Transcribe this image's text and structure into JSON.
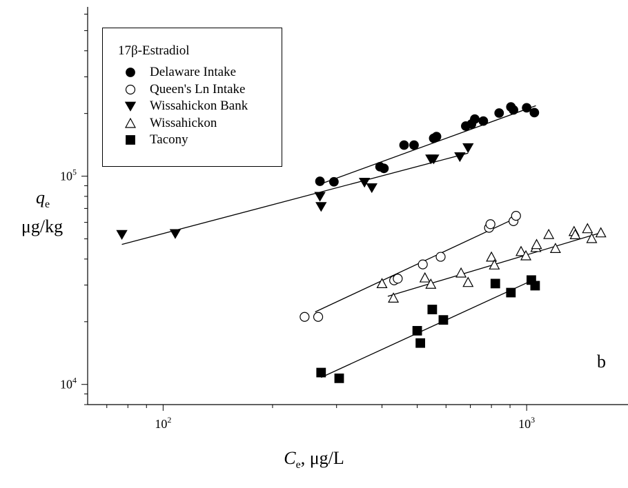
{
  "chart_data": {
    "type": "scatter",
    "panel_label": "b",
    "xlabel": {
      "symbol": "C",
      "subscript": "e",
      "unit": ", μg/L"
    },
    "ylabel": {
      "symbol": "q",
      "subscript": "e",
      "unit": "μg/kg"
    },
    "x_scale": "log",
    "y_scale": "log",
    "xlim": [
      62,
      1900
    ],
    "ylim": [
      8000,
      650000
    ],
    "x_ticks": [
      {
        "value": 100,
        "base": "10",
        "exp": "2"
      },
      {
        "value": 1000,
        "base": "10",
        "exp": "3"
      }
    ],
    "y_ticks": [
      {
        "value": 10000,
        "base": "10",
        "exp": "4"
      },
      {
        "value": 100000,
        "base": "10",
        "exp": "5"
      }
    ],
    "grid": false,
    "legend": {
      "title": "17β-Estradiol",
      "placement": "top-left"
    },
    "series": [
      {
        "name": "Delaware Intake",
        "marker": "circle-filled",
        "points": [
          [
            270,
            94500
          ],
          [
            295,
            94000
          ],
          [
            395,
            111000
          ],
          [
            405,
            109000
          ],
          [
            460,
            141000
          ],
          [
            490,
            141000
          ],
          [
            555,
            152000
          ],
          [
            565,
            155000
          ],
          [
            680,
            174000
          ],
          [
            705,
            178000
          ],
          [
            720,
            188000
          ],
          [
            760,
            184000
          ],
          [
            840,
            201000
          ],
          [
            905,
            215000
          ],
          [
            920,
            208000
          ],
          [
            1000,
            213000
          ],
          [
            1050,
            202000
          ]
        ],
        "fit": [
          [
            270,
            91500
          ],
          [
            1060,
            218000
          ]
        ]
      },
      {
        "name": "Queen's Ln Intake",
        "marker": "circle-open",
        "points": [
          [
            245,
            21100
          ],
          [
            267,
            21100
          ],
          [
            432,
            31600
          ],
          [
            442,
            32200
          ],
          [
            518,
            37700
          ],
          [
            580,
            41000
          ],
          [
            788,
            56500
          ],
          [
            795,
            58800
          ],
          [
            920,
            60800
          ],
          [
            935,
            64500
          ]
        ],
        "fit": [
          [
            262,
            22300
          ],
          [
            935,
            63000
          ]
        ]
      },
      {
        "name": "Wissahickon Bank",
        "marker": "triangle-down-filled",
        "points": [
          [
            77,
            52500
          ],
          [
            108,
            53000
          ],
          [
            270,
            80000
          ],
          [
            272,
            71500
          ],
          [
            358,
            93500
          ],
          [
            375,
            88000
          ],
          [
            545,
            121000
          ],
          [
            555,
            121000
          ],
          [
            655,
            124000
          ],
          [
            690,
            137000
          ]
        ],
        "fit": [
          [
            77,
            47000
          ],
          [
            690,
            129000
          ]
        ]
      },
      {
        "name": "Wissahickon",
        "marker": "triangle-up-open",
        "points": [
          [
            400,
            30500
          ],
          [
            430,
            26000
          ],
          [
            525,
            32500
          ],
          [
            545,
            30300
          ],
          [
            660,
            34300
          ],
          [
            690,
            30900
          ],
          [
            800,
            40900
          ],
          [
            815,
            37500
          ],
          [
            965,
            43500
          ],
          [
            995,
            41500
          ],
          [
            1060,
            45500
          ],
          [
            1065,
            47000
          ],
          [
            1150,
            52500
          ],
          [
            1200,
            45000
          ],
          [
            1350,
            54300
          ],
          [
            1360,
            52400
          ],
          [
            1470,
            56000
          ],
          [
            1510,
            50200
          ],
          [
            1600,
            53500
          ]
        ],
        "fit": [
          [
            415,
            26500
          ],
          [
            1600,
            53500
          ]
        ]
      },
      {
        "name": "Tacony",
        "marker": "square-filled",
        "points": [
          [
            272,
            11400
          ],
          [
            305,
            10700
          ],
          [
            500,
            18100
          ],
          [
            510,
            15800
          ],
          [
            550,
            22900
          ],
          [
            590,
            20400
          ],
          [
            820,
            30500
          ],
          [
            905,
            27600
          ],
          [
            1030,
            31700
          ],
          [
            1055,
            29800
          ]
        ],
        "fit": [
          [
            272,
            10800
          ],
          [
            1040,
            31700
          ]
        ]
      }
    ]
  }
}
